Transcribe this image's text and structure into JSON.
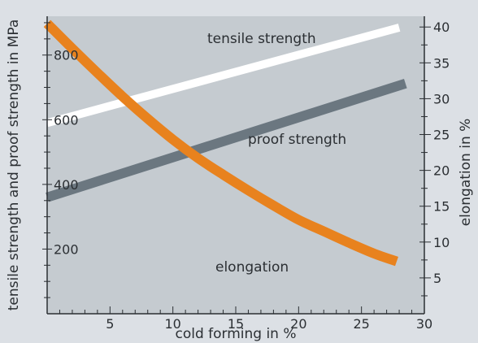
{
  "chart_data": {
    "type": "line",
    "title": "",
    "xlabel": "cold forming in %",
    "ylabel_left": "tensile strength and proof strength in MPa",
    "ylabel_right": "elongation in %",
    "xlim": [
      0,
      30
    ],
    "ylim_left": [
      0,
      920
    ],
    "ylim_right": [
      0,
      41.5
    ],
    "x_ticks_labeled": [
      5,
      10,
      15,
      20,
      25,
      30
    ],
    "y_left_ticks_labeled": [
      200,
      400,
      600,
      800
    ],
    "y_right_ticks_labeled": [
      5,
      10,
      15,
      20,
      25,
      30,
      35,
      40
    ],
    "x_tick_labels": [
      "5",
      "10",
      "15",
      "20",
      "25",
      "30"
    ],
    "y_left_tick_labels": [
      "200",
      "400",
      "600",
      "800"
    ],
    "y_right_tick_labels": [
      "5",
      "10",
      "15",
      "20",
      "25",
      "30",
      "35",
      "40"
    ],
    "grid": false,
    "series": [
      {
        "name": "tensile strength",
        "axis": "left",
        "color": "#ffffff",
        "x": [
          0,
          28
        ],
        "values": [
          590,
          885
        ]
      },
      {
        "name": "proof strength",
        "axis": "right_none_left",
        "color": "#6b7780",
        "x": [
          0,
          28.5
        ],
        "values": [
          360,
          712
        ]
      },
      {
        "name": "elongation",
        "axis": "right",
        "color": "#e8821e",
        "x": [
          0,
          2,
          4,
          6,
          8,
          10,
          12,
          14,
          16,
          18,
          20,
          22,
          24,
          26,
          27.8
        ],
        "values": [
          40.5,
          37.0,
          33.6,
          30.3,
          27.2,
          24.3,
          21.7,
          19.4,
          17.2,
          15.1,
          13.1,
          11.5,
          9.9,
          8.4,
          7.3
        ]
      }
    ]
  },
  "series_labels": {
    "tensile": "tensile strength",
    "proof": "proof strength",
    "elongation": "elongation"
  },
  "colors": {
    "background": "#dce0e5",
    "plot_background": "#c5cbd0",
    "axis": "#2b2f33"
  }
}
